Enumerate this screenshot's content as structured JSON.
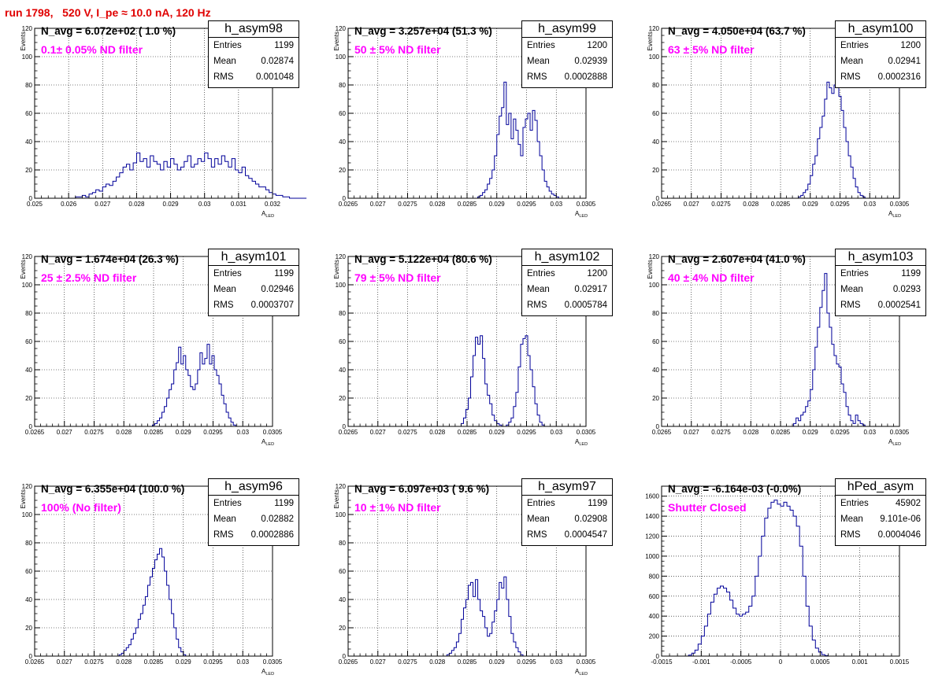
{
  "run_title": "run 1798,   520 V, I_pe ≈ 10.0 nA, 120 Hz",
  "chart_data": [
    {
      "type": "bar",
      "name": "h_asym98",
      "navg_text": "N_avg = 6.072e+02 ( 1.0 %)",
      "filter_text": "0.1± 0.05% ND filter",
      "stats": [
        [
          "Entries",
          "1199"
        ],
        [
          "Mean",
          "0.02874"
        ],
        [
          "RMS",
          "0.001048"
        ]
      ],
      "ylabel": "Events",
      "xlabel": "A",
      "xlabel_sub": "LED",
      "xlim": [
        0.025,
        0.032
      ],
      "ylim": [
        0,
        120
      ],
      "xticks": [
        0.025,
        0.026,
        0.027,
        0.028,
        0.029,
        0.03,
        0.031,
        0.032
      ],
      "xtick_labels": [
        "0.025",
        "0.026",
        "0.027",
        "0.028",
        "0.029",
        "0.03",
        "0.031",
        "0.032"
      ],
      "yticks": [
        0,
        20,
        40,
        60,
        80,
        100,
        120
      ],
      "ytick_labels": [
        "0",
        "20",
        "40",
        "60",
        "80",
        "100",
        "120"
      ],
      "bin_start": 0.0255,
      "bin_width": 0.0001,
      "values": [
        0,
        0,
        0,
        0,
        0,
        0,
        0,
        1,
        1,
        2,
        1,
        3,
        4,
        6,
        5,
        8,
        10,
        9,
        12,
        15,
        18,
        22,
        24,
        20,
        25,
        32,
        26,
        28,
        22,
        30,
        26,
        24,
        20,
        26,
        22,
        28,
        24,
        20,
        22,
        26,
        30,
        22,
        24,
        28,
        26,
        32,
        28,
        22,
        28,
        24,
        30,
        26,
        22,
        28,
        20,
        18,
        22,
        16,
        14,
        12,
        10,
        8,
        8,
        6,
        4,
        3,
        2,
        2,
        1,
        1,
        0,
        0,
        0,
        0,
        0
      ]
    },
    {
      "type": "bar",
      "name": "h_asym99",
      "navg_text": "N_avg = 3.257e+04 (51.3 %)",
      "filter_text": "50 ± 5% ND filter",
      "stats": [
        [
          "Entries",
          "1200"
        ],
        [
          "Mean",
          "0.02939"
        ],
        [
          "RMS",
          "0.0002888"
        ]
      ],
      "ylabel": "Events",
      "xlabel": "A",
      "xlabel_sub": "LED",
      "xlim": [
        0.0265,
        0.0305
      ],
      "ylim": [
        0,
        120
      ],
      "xticks": [
        0.0265,
        0.027,
        0.0275,
        0.028,
        0.0285,
        0.029,
        0.0295,
        0.03,
        0.0305
      ],
      "xtick_labels": [
        "0.0265",
        "0.027",
        "0.0275",
        "0.028",
        "0.0285",
        "0.029",
        "0.0295",
        "0.03",
        "0.0305"
      ],
      "yticks": [
        0,
        20,
        40,
        60,
        80,
        100,
        120
      ],
      "ytick_labels": [
        "0",
        "20",
        "40",
        "60",
        "80",
        "100",
        "120"
      ],
      "bin_start": 0.0286,
      "bin_width": 4e-05,
      "values": [
        0,
        0,
        1,
        2,
        4,
        6,
        10,
        14,
        20,
        30,
        45,
        58,
        64,
        82,
        52,
        60,
        42,
        56,
        48,
        38,
        30,
        50,
        56,
        60,
        48,
        62,
        55,
        40,
        30,
        20,
        12,
        8,
        5,
        3,
        2,
        1,
        0
      ]
    },
    {
      "type": "bar",
      "name": "h_asym100",
      "navg_text": "N_avg = 4.050e+04 (63.7 %)",
      "filter_text": "63 ± 5% ND filter",
      "stats": [
        [
          "Entries",
          "1200"
        ],
        [
          "Mean",
          "0.02941"
        ],
        [
          "RMS",
          "0.0002316"
        ]
      ],
      "ylabel": "Events",
      "xlabel": "A",
      "xlabel_sub": "LED",
      "xlim": [
        0.0265,
        0.0305
      ],
      "ylim": [
        0,
        120
      ],
      "xticks": [
        0.0265,
        0.027,
        0.0275,
        0.028,
        0.0285,
        0.029,
        0.0295,
        0.03,
        0.0305
      ],
      "xtick_labels": [
        "0.0265",
        "0.027",
        "0.0275",
        "0.028",
        "0.0285",
        "0.029",
        "0.0295",
        "0.03",
        "0.0305"
      ],
      "yticks": [
        0,
        20,
        40,
        60,
        80,
        100,
        120
      ],
      "ytick_labels": [
        "0",
        "20",
        "40",
        "60",
        "80",
        "100",
        "120"
      ],
      "bin_start": 0.02876,
      "bin_width": 4e-05,
      "values": [
        0,
        1,
        2,
        4,
        6,
        10,
        16,
        24,
        30,
        42,
        50,
        58,
        70,
        82,
        78,
        74,
        80,
        82,
        72,
        62,
        50,
        40,
        30,
        22,
        14,
        8,
        4,
        2,
        1,
        0
      ]
    },
    {
      "type": "bar",
      "name": "h_asym101",
      "navg_text": "N_avg = 1.674e+04 (26.3 %)",
      "filter_text": "25 ± 2.5% ND filter",
      "stats": [
        [
          "Entries",
          "1199"
        ],
        [
          "Mean",
          "0.02946"
        ],
        [
          "RMS",
          "0.0003707"
        ]
      ],
      "ylabel": "Events",
      "xlabel": "A",
      "xlabel_sub": "LED",
      "xlim": [
        0.0265,
        0.0305
      ],
      "ylim": [
        0,
        120
      ],
      "xticks": [
        0.0265,
        0.027,
        0.0275,
        0.028,
        0.0285,
        0.029,
        0.0295,
        0.03,
        0.0305
      ],
      "xtick_labels": [
        "0.0265",
        "0.027",
        "0.0275",
        "0.028",
        "0.0285",
        "0.029",
        "0.0295",
        "0.03",
        "0.0305"
      ],
      "yticks": [
        0,
        20,
        40,
        60,
        80,
        100,
        120
      ],
      "ytick_labels": [
        "0",
        "20",
        "40",
        "60",
        "80",
        "100",
        "120"
      ],
      "bin_start": 0.02844,
      "bin_width": 4e-05,
      "values": [
        0,
        1,
        2,
        4,
        6,
        10,
        14,
        20,
        26,
        30,
        40,
        45,
        56,
        44,
        50,
        40,
        36,
        28,
        26,
        30,
        40,
        52,
        44,
        48,
        58,
        44,
        50,
        40,
        36,
        30,
        22,
        16,
        10,
        6,
        3,
        1,
        0
      ]
    },
    {
      "type": "bar",
      "name": "h_asym102",
      "navg_text": "N_avg = 5.122e+04 (80.6 %)",
      "filter_text": "79 ± 5% ND filter",
      "stats": [
        [
          "Entries",
          "1200"
        ],
        [
          "Mean",
          "0.02917"
        ],
        [
          "RMS",
          "0.0005784"
        ]
      ],
      "ylabel": "Events",
      "xlabel": "A",
      "xlabel_sub": "LED",
      "xlim": [
        0.0265,
        0.0305
      ],
      "ylim": [
        0,
        120
      ],
      "xticks": [
        0.0265,
        0.027,
        0.0275,
        0.028,
        0.0285,
        0.029,
        0.0295,
        0.03,
        0.0305
      ],
      "xtick_labels": [
        "0.0265",
        "0.027",
        "0.0275",
        "0.028",
        "0.0285",
        "0.029",
        "0.0295",
        "0.03",
        "0.0305"
      ],
      "yticks": [
        0,
        20,
        40,
        60,
        80,
        100,
        120
      ],
      "ytick_labels": [
        "0",
        "20",
        "40",
        "60",
        "80",
        "100",
        "120"
      ],
      "bin_start": 0.02836,
      "bin_width": 4e-05,
      "values": [
        0,
        2,
        6,
        12,
        20,
        35,
        50,
        63,
        58,
        64,
        48,
        30,
        22,
        16,
        8,
        4,
        2,
        1,
        0,
        0,
        1,
        3,
        6,
        14,
        24,
        42,
        58,
        62,
        64,
        50,
        40,
        28,
        16,
        8,
        3,
        1,
        0
      ]
    },
    {
      "type": "bar",
      "name": "h_asym103",
      "navg_text": "N_avg = 2.607e+04 (41.0 %)",
      "filter_text": "40 ± 4% ND filter",
      "stats": [
        [
          "Entries",
          "1199"
        ],
        [
          "Mean",
          "0.0293"
        ],
        [
          "RMS",
          "0.0002541"
        ]
      ],
      "ylabel": "Events",
      "xlabel": "A",
      "xlabel_sub": "LED",
      "xlim": [
        0.0265,
        0.0305
      ],
      "ylim": [
        0,
        120
      ],
      "xticks": [
        0.0265,
        0.027,
        0.0275,
        0.028,
        0.0285,
        0.029,
        0.0295,
        0.03,
        0.0305
      ],
      "xtick_labels": [
        "0.0265",
        "0.027",
        "0.0275",
        "0.028",
        "0.0285",
        "0.029",
        "0.0295",
        "0.03",
        "0.0305"
      ],
      "yticks": [
        0,
        20,
        40,
        60,
        80,
        100,
        120
      ],
      "ytick_labels": [
        "0",
        "20",
        "40",
        "60",
        "80",
        "100",
        "120"
      ],
      "bin_start": 0.02868,
      "bin_width": 4e-05,
      "values": [
        0,
        2,
        6,
        4,
        8,
        10,
        14,
        18,
        26,
        40,
        56,
        70,
        84,
        96,
        108,
        80,
        70,
        58,
        50,
        44,
        42,
        30,
        24,
        14,
        8,
        4,
        2,
        8,
        4,
        2,
        1,
        0
      ]
    },
    {
      "type": "bar",
      "name": "h_asym96",
      "navg_text": "N_avg = 6.355e+04 (100.0 %)",
      "filter_text": "100% (No filter)",
      "stats": [
        [
          "Entries",
          "1199"
        ],
        [
          "Mean",
          "0.02882"
        ],
        [
          "RMS",
          "0.0002886"
        ]
      ],
      "ylabel": "Events",
      "xlabel": "A",
      "xlabel_sub": "LED",
      "xlim": [
        0.0265,
        0.0305
      ],
      "ylim": [
        0,
        120
      ],
      "xticks": [
        0.0265,
        0.027,
        0.0275,
        0.028,
        0.0285,
        0.029,
        0.0295,
        0.03,
        0.0305
      ],
      "xtick_labels": [
        "0.0265",
        "0.027",
        "0.0275",
        "0.028",
        "0.0285",
        "0.029",
        "0.0295",
        "0.03",
        "0.0305"
      ],
      "yticks": [
        0,
        20,
        40,
        60,
        80,
        100,
        120
      ],
      "ytick_labels": [
        "0",
        "20",
        "40",
        "60",
        "80",
        "100",
        "120"
      ],
      "bin_start": 0.02788,
      "bin_width": 4e-05,
      "values": [
        0,
        1,
        2,
        4,
        6,
        8,
        12,
        16,
        20,
        26,
        30,
        36,
        42,
        50,
        56,
        62,
        68,
        72,
        76,
        70,
        60,
        50,
        40,
        30,
        20,
        12,
        6,
        3,
        1,
        0
      ]
    },
    {
      "type": "bar",
      "name": "h_asym97",
      "navg_text": "N_avg = 6.097e+03 ( 9.6 %)",
      "filter_text": "10 ± 1% ND filter",
      "stats": [
        [
          "Entries",
          "1199"
        ],
        [
          "Mean",
          "0.02908"
        ],
        [
          "RMS",
          "0.0004547"
        ]
      ],
      "ylabel": "Events",
      "xlabel": "A",
      "xlabel_sub": "LED",
      "xlim": [
        0.0265,
        0.0305
      ],
      "ylim": [
        0,
        120
      ],
      "xticks": [
        0.0265,
        0.027,
        0.0275,
        0.028,
        0.0285,
        0.029,
        0.0295,
        0.03,
        0.0305
      ],
      "xtick_labels": [
        "0.0265",
        "0.027",
        "0.0275",
        "0.028",
        "0.0285",
        "0.029",
        "0.0295",
        "0.03",
        "0.0305"
      ],
      "yticks": [
        0,
        20,
        40,
        60,
        80,
        100,
        120
      ],
      "ytick_labels": [
        "0",
        "20",
        "40",
        "60",
        "80",
        "100",
        "120"
      ],
      "bin_start": 0.02812,
      "bin_width": 4e-05,
      "values": [
        0,
        1,
        2,
        4,
        6,
        10,
        16,
        26,
        34,
        40,
        50,
        52,
        42,
        54,
        40,
        32,
        28,
        20,
        14,
        16,
        24,
        32,
        40,
        52,
        48,
        56,
        40,
        28,
        16,
        10,
        6,
        3,
        1,
        0
      ]
    },
    {
      "type": "bar",
      "name": "hPed_asym",
      "navg_text": "N_avg = -6.164e-03 (-0.0%)",
      "filter_text": "Shutter Closed",
      "stats": [
        [
          "Entries",
          "45902"
        ],
        [
          "Mean",
          "9.101e-06"
        ],
        [
          "RMS",
          "0.0004046"
        ]
      ],
      "ylabel": "",
      "xlabel": "",
      "xlabel_sub": "",
      "xlim": [
        -0.0015,
        0.0015
      ],
      "ylim": [
        0,
        1700
      ],
      "xticks": [
        -0.0015,
        -0.001,
        -0.0005,
        0,
        0.0005,
        0.001,
        0.0015
      ],
      "xtick_labels": [
        "-0.0015",
        "-0.001",
        "-0.0005",
        "0",
        "0.0005",
        "0.001",
        "0.0015"
      ],
      "yticks": [
        0,
        200,
        400,
        600,
        800,
        1000,
        1200,
        1400,
        1600
      ],
      "ytick_labels": [
        "0",
        "200",
        "400",
        "600",
        "800",
        "1000",
        "1200",
        "1400",
        "1600"
      ],
      "bin_start": -0.0012,
      "bin_width": 4e-05,
      "values": [
        0,
        10,
        30,
        60,
        120,
        200,
        300,
        420,
        540,
        620,
        680,
        700,
        680,
        640,
        560,
        480,
        420,
        400,
        420,
        440,
        500,
        600,
        800,
        1000,
        1200,
        1380,
        1480,
        1540,
        1560,
        1520,
        1500,
        1540,
        1500,
        1460,
        1400,
        1300,
        1100,
        800,
        500,
        300,
        160,
        80,
        40,
        15,
        5,
        0,
        0
      ]
    }
  ]
}
